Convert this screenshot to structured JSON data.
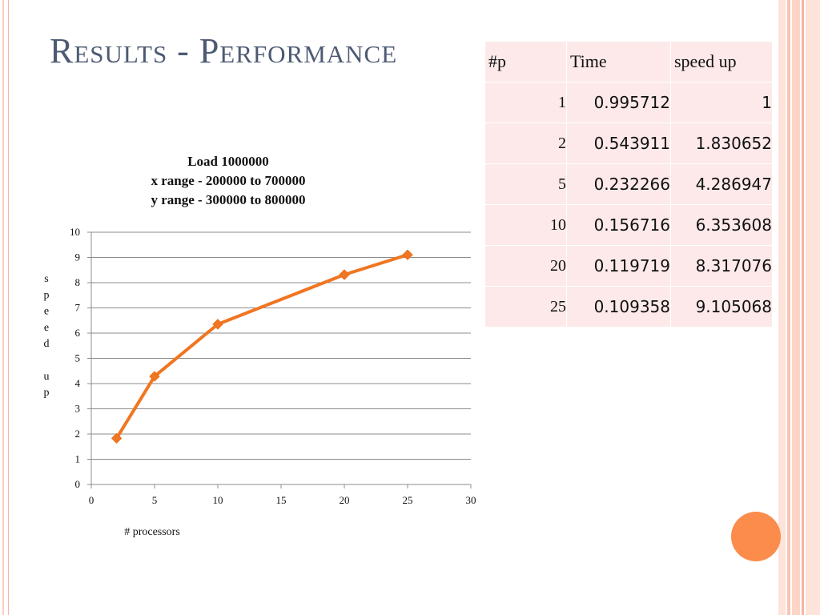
{
  "slide": {
    "title": "Results - Performance"
  },
  "table": {
    "headers": [
      "#p",
      "Time",
      "speed up"
    ],
    "rows": [
      {
        "p": "1",
        "time": "0.995712",
        "speedup": "1"
      },
      {
        "p": "2",
        "time": "0.543911",
        "speedup": "1.830652"
      },
      {
        "p": "5",
        "time": "0.232266",
        "speedup": "4.286947"
      },
      {
        "p": "10",
        "time": "0.156716",
        "speedup": "6.353608"
      },
      {
        "p": "20",
        "time": "0.119719",
        "speedup": "8.317076"
      },
      {
        "p": "25",
        "time": "0.109358",
        "speedup": "9.105068"
      }
    ]
  },
  "chart_data": {
    "type": "line",
    "title_lines": [
      "Load 1000000",
      "x range    - 200000 to 700000",
      "y range    - 300000 to 800000"
    ],
    "xlabel": "# processors",
    "ylabel_lines": [
      "s",
      "p",
      "e",
      "e",
      "d",
      "",
      "u",
      "p"
    ],
    "xlim": [
      0,
      30
    ],
    "ylim": [
      0,
      10
    ],
    "x_ticks": [
      0,
      5,
      10,
      15,
      20,
      25,
      30
    ],
    "y_ticks": [
      0,
      1,
      2,
      3,
      4,
      5,
      6,
      7,
      8,
      9,
      10
    ],
    "grid": true,
    "series": [
      {
        "x": [
          2,
          5,
          10,
          20,
          25
        ],
        "y": [
          1.830652,
          4.286947,
          6.353608,
          8.317076,
          9.105068
        ],
        "color": "#f07622",
        "marker": "diamond"
      }
    ]
  },
  "colors": {
    "accent": "#fb8c4c",
    "title": "#4d5a73",
    "table_fill": "#fde9e9"
  }
}
